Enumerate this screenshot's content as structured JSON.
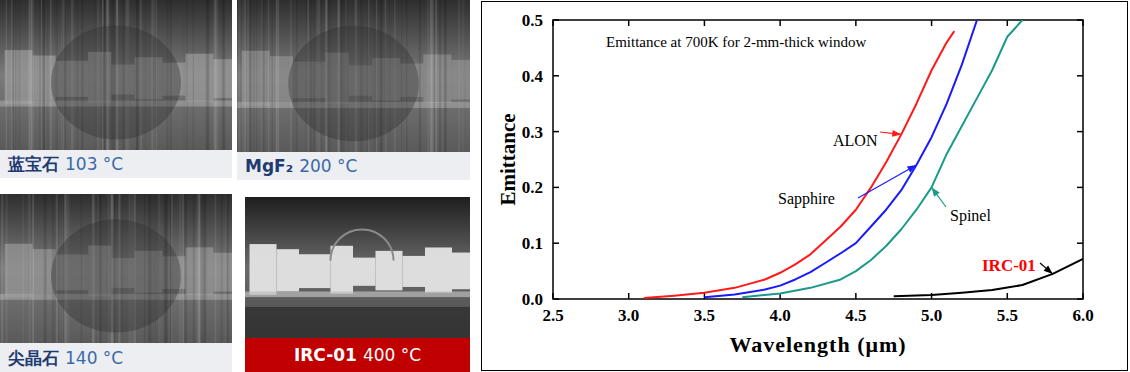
{
  "images": [
    {
      "material": "蓝宝石",
      "temperature": "103 °C"
    },
    {
      "material": "MgF₂",
      "temperature": "200 °C"
    },
    {
      "material": "尖晶石",
      "temperature": "140 °C"
    },
    {
      "material": "IRC-01",
      "temperature": "400 °C"
    }
  ],
  "chart_data": {
    "type": "line",
    "title": "Emittance at 700K for 2-mm-thick window",
    "x_label": "Wavelength (μm)",
    "y_label": "Emittance",
    "xlim": [
      2.5,
      6.0
    ],
    "ylim": [
      0,
      0.5
    ],
    "xticks": [
      2.5,
      {
        "value": 3,
        "label": "3.0"
      },
      3.5,
      {
        "value": 4,
        "label": "4.0"
      },
      4.5,
      {
        "value": 5,
        "label": "5.0"
      },
      5.5,
      {
        "value": 6,
        "label": "6.0"
      }
    ],
    "yticks": [
      {
        "value": 0,
        "label": "0.0"
      },
      0.1,
      0.2,
      0.3,
      0.4,
      0.5
    ],
    "grid": false,
    "series": [
      {
        "name": "ALON",
        "color": "#ff1a1a",
        "x": [
          3.1,
          3.3,
          3.5,
          3.7,
          3.9,
          4.0,
          4.1,
          4.2,
          4.3,
          4.4,
          4.5,
          4.6,
          4.7,
          4.8,
          4.9,
          5.0,
          5.1,
          5.15
        ],
        "values": [
          0.002,
          0.006,
          0.011,
          0.02,
          0.035,
          0.047,
          0.062,
          0.08,
          0.105,
          0.13,
          0.16,
          0.2,
          0.245,
          0.295,
          0.35,
          0.41,
          0.46,
          0.48
        ]
      },
      {
        "name": "Sapphire",
        "color": "#1a1aff",
        "x": [
          3.5,
          3.7,
          3.9,
          4.0,
          4.1,
          4.2,
          4.3,
          4.4,
          4.5,
          4.6,
          4.7,
          4.8,
          4.9,
          5.0,
          5.1,
          5.2,
          5.3
        ],
        "values": [
          0.003,
          0.008,
          0.017,
          0.024,
          0.035,
          0.048,
          0.065,
          0.082,
          0.1,
          0.13,
          0.16,
          0.195,
          0.24,
          0.29,
          0.35,
          0.42,
          0.5
        ]
      },
      {
        "name": "Spinel",
        "color": "#1a9a8a",
        "x": [
          3.75,
          4.0,
          4.2,
          4.4,
          4.5,
          4.6,
          4.7,
          4.8,
          4.9,
          5.0,
          5.1,
          5.2,
          5.3,
          5.4,
          5.5,
          5.6
        ],
        "values": [
          0.003,
          0.01,
          0.02,
          0.035,
          0.05,
          0.07,
          0.095,
          0.125,
          0.16,
          0.2,
          0.26,
          0.31,
          0.36,
          0.41,
          0.47,
          0.5
        ]
      },
      {
        "name": "IRC-01",
        "color": "#000000",
        "x": [
          4.75,
          5.0,
          5.2,
          5.4,
          5.6,
          5.8,
          6.0
        ],
        "values": [
          0.005,
          0.007,
          0.011,
          0.016,
          0.025,
          0.045,
          0.072
        ]
      }
    ]
  }
}
